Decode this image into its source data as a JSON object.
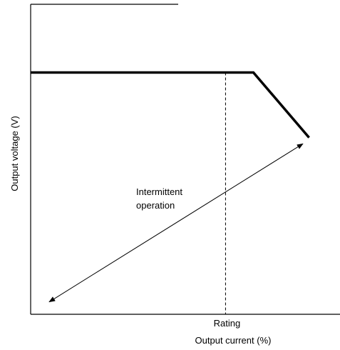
{
  "chart_data": {
    "type": "line",
    "title": "",
    "xlabel": "Output current (%)",
    "ylabel": "Output voltage (V)",
    "xlim": [
      0,
      100
    ],
    "ylim": [
      0,
      100
    ],
    "grid": false,
    "legend": "none",
    "x_tick_label": "Rating",
    "x_tick_value": 63,
    "series": [
      {
        "x": [
          0,
          72,
          90
        ],
        "y": [
          78,
          78,
          57
        ]
      }
    ],
    "annotation": {
      "text_line1": "Intermittent",
      "text_line2": "operation",
      "arrow_from": [
        6,
        4
      ],
      "arrow_to": [
        88,
        55
      ]
    },
    "colors": {
      "line": "#000000",
      "axis": "#000000",
      "background": "#ffffff"
    }
  }
}
